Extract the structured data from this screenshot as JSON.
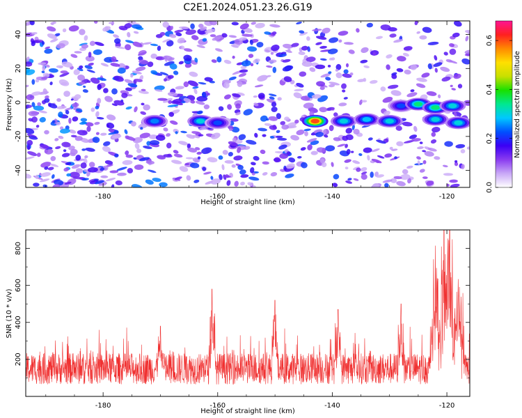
{
  "title": "C2E1.2024.051.23.26.G19",
  "chart_data": [
    {
      "type": "heatmap",
      "xlabel": "Height of straight line (km)",
      "ylabel": "Frequency (Hz)",
      "xlim": [
        -193.5,
        -116
      ],
      "ylim": [
        -50,
        48
      ],
      "xticks": [
        -180,
        -160,
        -140,
        -120
      ],
      "yticks": [
        -40,
        -20,
        0,
        20,
        40
      ],
      "colorbar": {
        "label": "Normalized spectral amplitude",
        "range": [
          0,
          0.68
        ],
        "ticks": [
          "0.0",
          "0.2",
          "0.4",
          "0.6"
        ],
        "colors": [
          "#ffffff",
          "#c9a8f7",
          "#8a3cf0",
          "#3b00f5",
          "#0050ff",
          "#00c8ff",
          "#00e890",
          "#19e000",
          "#c8e000",
          "#ffe000",
          "#ff8a00",
          "#ff2020",
          "#ff1493"
        ]
      },
      "signal_track": [
        {
          "x": -171,
          "y": -11,
          "amplitude": 0.25
        },
        {
          "x": -163,
          "y": -11,
          "amplitude": 0.3
        },
        {
          "x": -160,
          "y": -12,
          "amplitude": 0.22
        },
        {
          "x": -143,
          "y": -11,
          "amplitude": 0.6
        },
        {
          "x": -138,
          "y": -11,
          "amplitude": 0.3
        },
        {
          "x": -134,
          "y": -10,
          "amplitude": 0.28
        },
        {
          "x": -130,
          "y": -11,
          "amplitude": 0.3
        },
        {
          "x": -128,
          "y": -2,
          "amplitude": 0.22
        },
        {
          "x": -125,
          "y": -1,
          "amplitude": 0.35
        },
        {
          "x": -122,
          "y": -3,
          "amplitude": 0.35
        },
        {
          "x": -119,
          "y": -2,
          "amplitude": 0.3
        },
        {
          "x": -122,
          "y": -10,
          "amplitude": 0.3
        },
        {
          "x": -118,
          "y": -12,
          "amplitude": 0.3
        }
      ]
    },
    {
      "type": "line",
      "xlabel": "Height of straight line (km)",
      "ylabel": "SNR (10 * v/v)",
      "xlim": [
        -193.5,
        -116
      ],
      "ylim": [
        0,
        900
      ],
      "xticks": [
        -180,
        -160,
        -140,
        -120
      ],
      "yticks": [
        200,
        400,
        600,
        800
      ],
      "color": "#f03030",
      "baseline": 150,
      "peaks": [
        {
          "x": -170,
          "y": 380
        },
        {
          "x": -161,
          "y": 580
        },
        {
          "x": -150,
          "y": 520
        },
        {
          "x": -139,
          "y": 470
        },
        {
          "x": -128,
          "y": 500
        },
        {
          "x": -122,
          "y": 660
        },
        {
          "x": -120.5,
          "y": 790
        },
        {
          "x": -119.5,
          "y": 890
        },
        {
          "x": -118,
          "y": 470
        }
      ]
    }
  ]
}
